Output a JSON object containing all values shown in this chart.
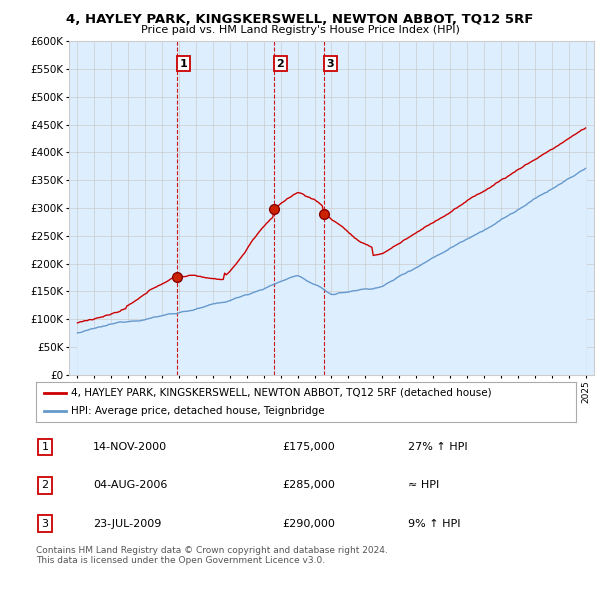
{
  "title": "4, HAYLEY PARK, KINGSKERSWELL, NEWTON ABBOT, TQ12 5RF",
  "subtitle": "Price paid vs. HM Land Registry's House Price Index (HPI)",
  "ylabel_ticks": [
    "£0",
    "£50K",
    "£100K",
    "£150K",
    "£200K",
    "£250K",
    "£300K",
    "£350K",
    "£400K",
    "£450K",
    "£500K",
    "£550K",
    "£600K"
  ],
  "ytick_values": [
    0,
    50000,
    100000,
    150000,
    200000,
    250000,
    300000,
    350000,
    400000,
    450000,
    500000,
    550000,
    600000
  ],
  "xlim_start": 1994.5,
  "xlim_end": 2025.5,
  "ylim_min": 0,
  "ylim_max": 600000,
  "property_color": "#cc0000",
  "hpi_color": "#6699cc",
  "hpi_fill_color": "#ddeeff",
  "vline_color": "#cc0000",
  "transactions": [
    {
      "date_year": 2000.87,
      "price": 175000,
      "label": "1"
    },
    {
      "date_year": 2006.59,
      "price": 285000,
      "label": "2"
    },
    {
      "date_year": 2009.55,
      "price": 290000,
      "label": "3"
    }
  ],
  "legend_property": "4, HAYLEY PARK, KINGSKERSWELL, NEWTON ABBOT, TQ12 5RF (detached house)",
  "legend_hpi": "HPI: Average price, detached house, Teignbridge",
  "table_rows": [
    {
      "num": "1",
      "date": "14-NOV-2000",
      "price": "£175,000",
      "hpi_diff": "27% ↑ HPI"
    },
    {
      "num": "2",
      "date": "04-AUG-2006",
      "price": "£285,000",
      "hpi_diff": "≈ HPI"
    },
    {
      "num": "3",
      "date": "23-JUL-2009",
      "price": "£290,000",
      "hpi_diff": "9% ↑ HPI"
    }
  ],
  "footer": "Contains HM Land Registry data © Crown copyright and database right 2024.\nThis data is licensed under the Open Government Licence v3.0.",
  "bg_color": "#ffffff",
  "grid_color": "#cccccc"
}
